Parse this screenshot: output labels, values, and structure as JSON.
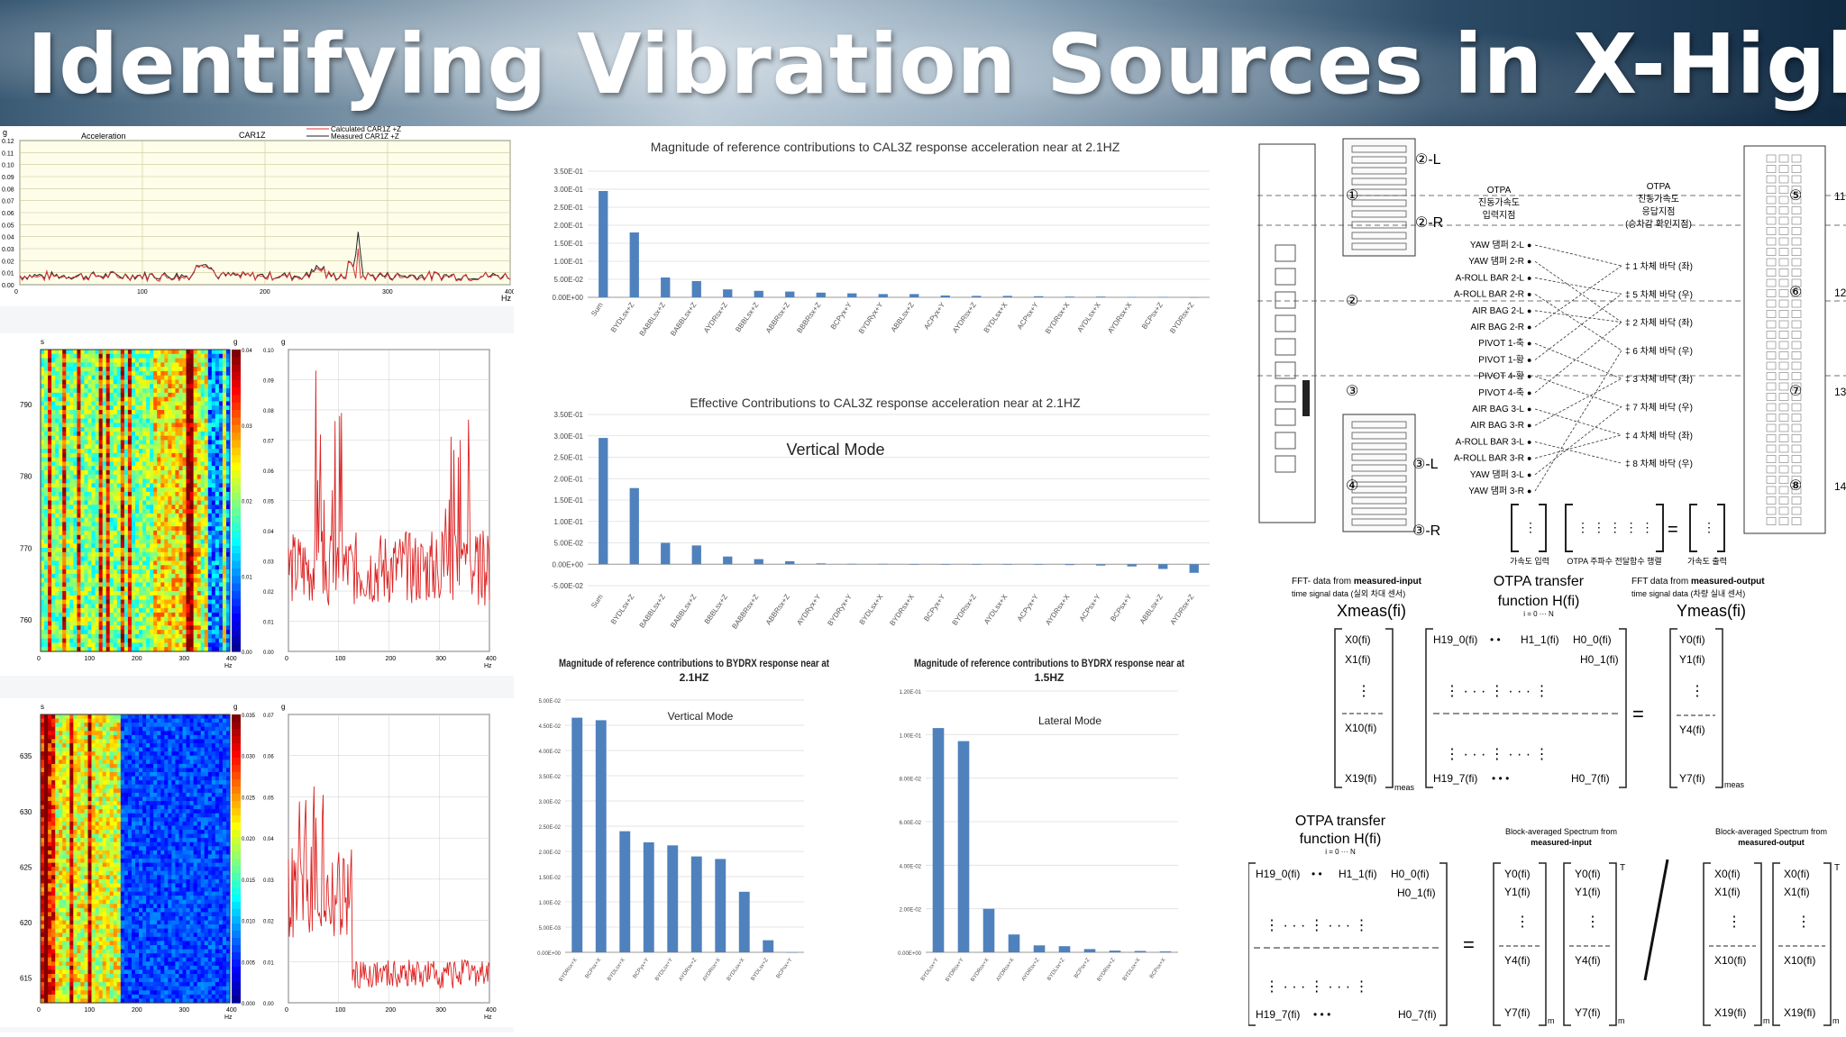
{
  "title": "Identifying Vibration Sources in X-Highspeed Train",
  "accel_plot": {
    "title_left": "Acceleration",
    "title_mid": "CAR1Z",
    "legend": [
      "Calculated CAR1Z +Z",
      "Measured CAR1Z +Z"
    ],
    "unit": "g",
    "yticks": [
      "0.12",
      "0.11",
      "0.10",
      "0.09",
      "0.08",
      "0.07",
      "0.06",
      "0.05",
      "0.04",
      "0.03",
      "0.02",
      "0.01",
      "0.00"
    ],
    "xticks": [
      "0",
      "100",
      "200",
      "300",
      "400"
    ],
    "xunit": "Hz"
  },
  "spectrogram_1": {
    "yaxis_unit": "s",
    "yticks": [
      "790",
      "780",
      "770",
      "760"
    ],
    "xticks": [
      "0",
      "100",
      "200",
      "300",
      "400"
    ],
    "xunit": "Hz",
    "colorbar_ticks": [
      "0.04",
      "0.03",
      "0.02",
      "0.01",
      "0.00"
    ],
    "colorbar_unit": "g",
    "spectrum_yticks": [
      "0.10",
      "0.09",
      "0.08",
      "0.07",
      "0.06",
      "0.05",
      "0.04",
      "0.03",
      "0.02",
      "0.01",
      "0.00"
    ],
    "spectrum_unit": "g"
  },
  "spectrogram_2": {
    "yaxis_unit": "s",
    "yticks": [
      "635",
      "630",
      "625",
      "620",
      "615"
    ],
    "xticks": [
      "0",
      "100",
      "200",
      "300",
      "400"
    ],
    "xunit": "Hz",
    "colorbar_ticks": [
      "0.035",
      "0.030",
      "0.025",
      "0.020",
      "0.015",
      "0.010",
      "0.005",
      "0.000"
    ],
    "colorbar_unit": "g",
    "spectrum_yticks": [
      "0.07",
      "0.06",
      "0.05",
      "0.04",
      "0.03",
      "0.02",
      "0.01",
      "0.00"
    ],
    "spectrum_unit": "g"
  },
  "chart_data": [
    {
      "type": "bar",
      "title": "Magnitude of reference contributions to CAL3Z response acceleration near at 2.1HZ",
      "categories": [
        "Sum",
        "BYDLsx+Z",
        "BABBLsx+Z",
        "BABBLsx+Z",
        "AYDRsx+Z",
        "BBBLsx+Z",
        "ABBRsx+Z",
        "BBBRsx+Z",
        "BCPyx+Y",
        "BYDRyx+Y",
        "ABBLsx+Z",
        "ACPyx+Y",
        "AYDRsx+Z",
        "BYDLsx+X",
        "ACPsx+Y",
        "BYDRsx+X",
        "AYDLsx+X",
        "AYDRsx+X",
        "BCPsx+Z",
        "BYDRsx+Z"
      ],
      "values": [
        0.295,
        0.18,
        0.055,
        0.045,
        0.022,
        0.018,
        0.016,
        0.013,
        0.011,
        0.009,
        0.009,
        0.005,
        0.004,
        0.004,
        0.003,
        0.002,
        0.002,
        0.001,
        0.001,
        0.0
      ],
      "yticks": [
        "3.50E-01",
        "3.00E-01",
        "2.50E-01",
        "2.00E-01",
        "1.50E-01",
        "1.00E-01",
        "5.00E-02",
        "0.00E+00"
      ],
      "ylim": [
        0,
        0.35
      ]
    },
    {
      "type": "bar",
      "title": "Effective Contributions to CAL3Z response acceleration near at 2.1HZ",
      "annotation": "Vertical Mode",
      "categories": [
        "Sum",
        "BYDLsx+Z",
        "BABBLsx+Z",
        "BABBLsx+Z",
        "BBBLsx+Z",
        "BABBRsx+Z",
        "ABBRsx+Z",
        "AYDRyx+Y",
        "BYDRyx+Y",
        "BYDLsx+X",
        "BYDRsx+X",
        "BCPyx+Y",
        "BYDRsx+Z",
        "AYDLsx+X",
        "ACPyx+Y",
        "AYDRsx+X",
        "ACPsx+Y",
        "BCPsx+Y",
        "ABBLsx+Z",
        "AYDRsx+Z"
      ],
      "values": [
        0.295,
        0.178,
        0.05,
        0.044,
        0.018,
        0.012,
        0.007,
        0.002,
        0.001,
        0.001,
        0.0,
        0.0,
        0.0,
        -0.001,
        -0.001,
        -0.002,
        -0.003,
        -0.005,
        -0.011,
        -0.02
      ],
      "yticks": [
        "3.50E-01",
        "3.00E-01",
        "2.50E-01",
        "2.00E-01",
        "1.50E-01",
        "1.00E-01",
        "5.00E-02",
        "0.00E+00",
        "-5.00E-02"
      ],
      "ylim": [
        -0.05,
        0.35
      ]
    },
    {
      "type": "bar",
      "title": "Magnitude of reference contributions to BYDRX response near at 2.1HZ",
      "annotation": "Vertical Mode",
      "categories": [
        "BYDRsx+X",
        "BCPsx+X",
        "BYDLsx+X",
        "BCPyx+Y",
        "BYDLsx+Y",
        "AYDRsx+Z",
        "AYDRsx+X",
        "BYDLsx+X",
        "BYDLsx+Z",
        "BCPsx+Y"
      ],
      "values": [
        0.0465,
        0.046,
        0.024,
        0.0218,
        0.0212,
        0.019,
        0.0185,
        0.012,
        0.0024,
        0.0
      ],
      "yticks": [
        "5.00E-02",
        "4.50E-02",
        "4.00E-02",
        "3.50E-02",
        "3.00E-02",
        "2.50E-02",
        "2.00E-02",
        "1.50E-02",
        "1.00E-02",
        "5.00E-03",
        "0.00E+00"
      ],
      "ylim": [
        0,
        0.05
      ]
    },
    {
      "type": "bar",
      "title": "Magnitude of reference contributions to BYDRX response near at 1.5HZ",
      "annotation": "Lateral Mode",
      "categories": [
        "BYDLsx+Y",
        "BYDRsx+Y",
        "BYDRsx+X",
        "AYDRsx+X",
        "AYDRsx+Z",
        "BYDLsx+Z",
        "BCPsx+Z",
        "BYDRsx+Z",
        "BYDLsx+X",
        "BCPsx+X"
      ],
      "values": [
        0.103,
        0.097,
        0.02,
        0.0082,
        0.0032,
        0.0028,
        0.0015,
        0.0008,
        0.0006,
        0.0004
      ],
      "yticks": [
        "1.20E-01",
        "1.00E-01",
        "8.00E-02",
        "6.00E-02",
        "4.00E-02",
        "2.00E-02",
        "0.00E+00"
      ],
      "ylim": [
        0,
        0.12
      ]
    }
  ],
  "otpa_diagram": {
    "labels_top": [
      "②-L",
      "②-R",
      "③-L",
      "③-R"
    ],
    "col1_title": [
      "OTPA",
      "진동가속도",
      "입력지점"
    ],
    "col2_title": [
      "OTPA",
      "진동가속도",
      "응답지점",
      "(승차감 확인지점)"
    ],
    "inputs": [
      "YAW 댐퍼 2-L",
      "YAW 댐퍼 2-R",
      "A-ROLL BAR 2-L",
      "A-ROLL BAR 2-R",
      "AIR BAG 2-L",
      "AIR BAG 2-R",
      "PIVOT 1-축",
      "PIVOT 1-황",
      "PIVOT 4-황",
      "PIVOT 4-축",
      "AIR BAG 3-L",
      "AIR BAG 3-R",
      "A-ROLL BAR 3-L",
      "A-ROLL BAR 3-R",
      "YAW 댐퍼 3-L",
      "YAW 댐퍼 3-R"
    ],
    "outputs": [
      "‡ 1 차체 바닥 (좌)",
      "‡ 5 차체 바닥 (우)",
      "‡ 2 차체 바닥 (좌)",
      "‡ 6 차체 바닥 (우)",
      "‡ 3 차체 바닥 (좌)",
      "‡ 7 차체 바닥 (우)",
      "‡ 4 차체 바닥 (좌)",
      "‡ 8 차체 바닥 (우)"
    ],
    "circles_left": [
      "①",
      "②",
      "③",
      "④"
    ],
    "circles_right": [
      "⑤",
      "⑥",
      "⑦",
      "⑧"
    ],
    "right_edge_nums": [
      "11",
      "12",
      "13",
      "14"
    ],
    "bottom_captions": [
      "가속도 입력",
      "OTPA 주파수 전달함수 행렬",
      "가속도 출력"
    ]
  },
  "equation_1": {
    "left_caption_a": "FFT- data from ",
    "left_caption_b": "measured-input",
    "left_caption_c": "time signal data (실외 차대 센서)",
    "left_symbol": "Xmeas(fi)",
    "mid_caption": "OTPA transfer function H(fi)",
    "mid_sub": "i = 0 ··· N",
    "right_caption_a": "FFT data from ",
    "right_caption_b": "measured-output",
    "right_caption_c": "time signal data (차량 실내 센서)",
    "right_symbol": "Ymeas(fi)",
    "x_vector": [
      "X0(fi)",
      "X1(fi)",
      "X10(fi)",
      "X19(fi)"
    ],
    "h_entries": [
      "H19_0(fi)",
      "H1_1(fi)",
      "H0_0(fi)",
      "H0_1(fi)",
      "H19_7(fi)",
      "H0_7(fi)"
    ],
    "y_vector": [
      "Y0(fi)",
      "Y1(fi)",
      "Y4(fi)",
      "Y7(fi)"
    ],
    "meas": "meas"
  },
  "equation_2": {
    "mid_caption": "OTPA transfer function H(fi)",
    "mid_sub": "i = 0 ··· N",
    "caption_b1": "Block-averaged Spectrum from",
    "caption_b2": "measured-input",
    "caption_c1": "Block-averaged Spectrum from",
    "caption_c2": "measured-output",
    "h_entries": [
      "H19_0(fi)",
      "H1_1(fi)",
      "H0_0(fi)",
      "H0_1(fi)",
      "H19_7(fi)",
      "H0_7(fi)"
    ],
    "y_vector": [
      "Y0(fi)",
      "Y1(fi)",
      "Y4(fi)",
      "Y7(fi)"
    ],
    "x_vector": [
      "X0(fi)",
      "X1(fi)",
      "X10(fi)",
      "X19(fi)"
    ],
    "m": "m",
    "T": "T"
  }
}
